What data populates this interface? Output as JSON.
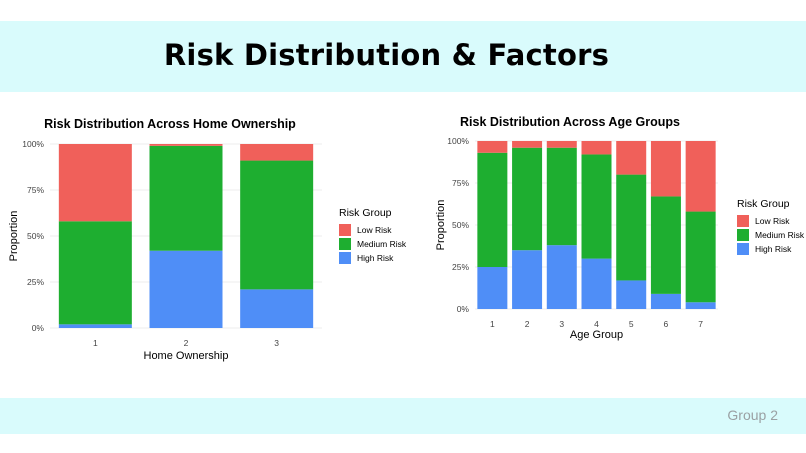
{
  "slide": {
    "title": "Risk Distribution & Factors",
    "footer": "Group 2"
  },
  "colors": {
    "low": "#f0605a",
    "medium": "#1eae30",
    "high": "#4f8ef7",
    "band": "#d9fbfc"
  },
  "chart_data": [
    {
      "type": "bar",
      "stacked": true,
      "title": "Risk Distribution Across Home Ownership",
      "xlabel": "Home Ownership",
      "ylabel": "Proportion",
      "categories": [
        "1",
        "2",
        "3"
      ],
      "yticks": [
        "0%",
        "25%",
        "50%",
        "75%",
        "100%"
      ],
      "ylim": [
        0,
        1
      ],
      "legend": {
        "title": "Risk Group",
        "position": "right"
      },
      "series": [
        {
          "name": "High Risk",
          "color": "#4f8ef7",
          "values": [
            0.02,
            0.42,
            0.21
          ]
        },
        {
          "name": "Medium Risk",
          "color": "#1eae30",
          "values": [
            0.56,
            0.57,
            0.7
          ]
        },
        {
          "name": "Low Risk",
          "color": "#f0605a",
          "values": [
            0.42,
            0.01,
            0.09
          ]
        }
      ]
    },
    {
      "type": "bar",
      "stacked": true,
      "title": "Risk Distribution Across Age Groups",
      "xlabel": "Age Group",
      "ylabel": "Proportion",
      "categories": [
        "1",
        "2",
        "3",
        "4",
        "5",
        "6",
        "7"
      ],
      "yticks": [
        "0%",
        "25%",
        "50%",
        "75%",
        "100%"
      ],
      "ylim": [
        0,
        1
      ],
      "legend": {
        "title": "Risk Group",
        "position": "right"
      },
      "series": [
        {
          "name": "High Risk",
          "color": "#4f8ef7",
          "values": [
            0.25,
            0.35,
            0.38,
            0.3,
            0.17,
            0.09,
            0.04
          ]
        },
        {
          "name": "Medium Risk",
          "color": "#1eae30",
          "values": [
            0.68,
            0.61,
            0.58,
            0.62,
            0.63,
            0.58,
            0.54
          ]
        },
        {
          "name": "Low Risk",
          "color": "#f0605a",
          "values": [
            0.07,
            0.04,
            0.04,
            0.08,
            0.2,
            0.33,
            0.42
          ]
        }
      ]
    }
  ]
}
